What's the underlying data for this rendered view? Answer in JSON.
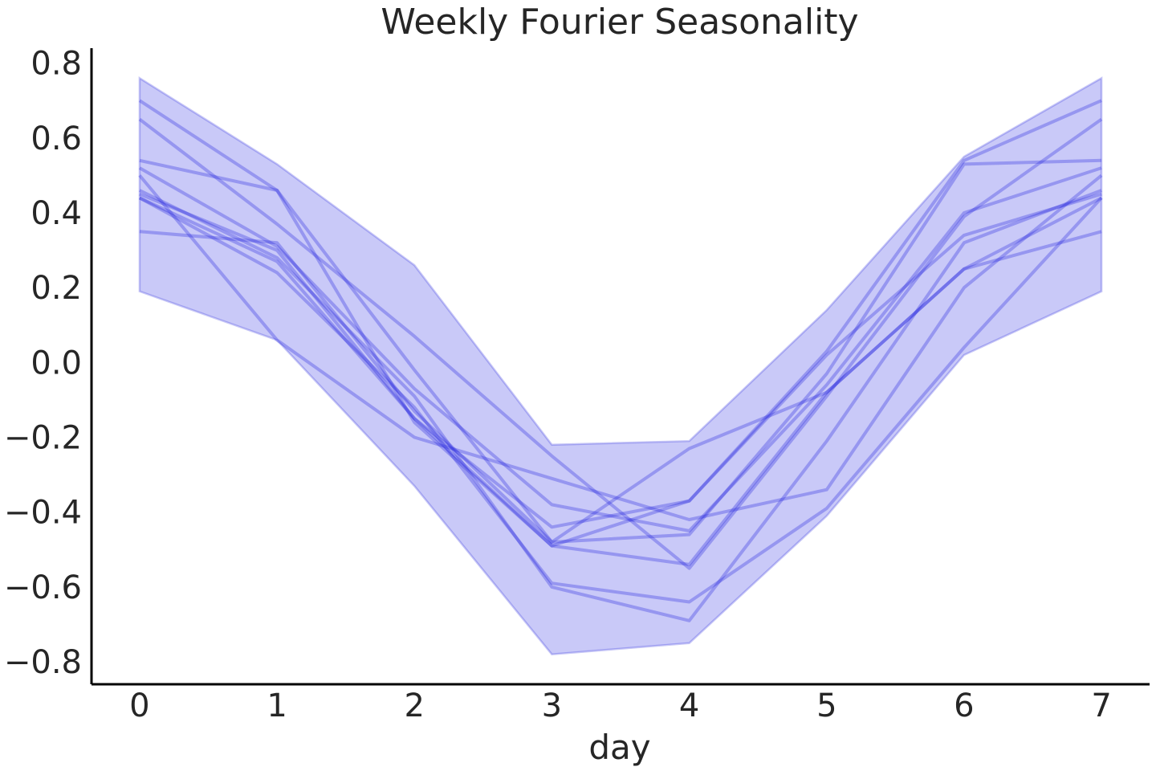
{
  "chart_data": {
    "type": "line",
    "title": "Weekly Fourier Seasonality",
    "xlabel": "day",
    "ylabel": "",
    "xlim": [
      -0.35,
      7.35
    ],
    "ylim": [
      -0.86,
      0.84
    ],
    "x_ticks": [
      0,
      1,
      2,
      3,
      4,
      5,
      6,
      7
    ],
    "x_tick_labels": [
      "0",
      "1",
      "2",
      "3",
      "4",
      "5",
      "6",
      "7"
    ],
    "y_ticks": [
      0.8,
      0.6,
      0.4,
      0.2,
      0.0,
      -0.2,
      -0.4,
      -0.6,
      -0.8
    ],
    "y_tick_labels": [
      "0.8",
      "0.6",
      "0.4",
      "0.2",
      "0.0",
      "−0.2",
      "−0.4",
      "−0.6",
      "−0.8"
    ],
    "grid": false,
    "line_color": "#2222dd",
    "band_color": "#8888f0",
    "x": [
      0,
      1,
      2,
      3,
      4,
      5,
      6,
      7
    ],
    "band": {
      "upper": [
        0.76,
        0.53,
        0.26,
        -0.22,
        -0.21,
        0.14,
        0.55,
        0.76
      ],
      "lower": [
        0.19,
        0.06,
        -0.33,
        -0.78,
        -0.75,
        -0.41,
        0.02,
        0.19
      ]
    },
    "series": [
      {
        "values": [
          0.7,
          0.46,
          -0.16,
          -0.49,
          -0.37,
          0.03,
          0.54,
          0.7
        ]
      },
      {
        "values": [
          0.65,
          0.37,
          0.07,
          -0.25,
          -0.55,
          -0.09,
          0.39,
          0.65
        ]
      },
      {
        "values": [
          0.54,
          0.46,
          -0.02,
          -0.48,
          -0.46,
          -0.03,
          0.53,
          0.54
        ]
      },
      {
        "values": [
          0.52,
          0.31,
          -0.07,
          -0.38,
          -0.45,
          -0.06,
          0.4,
          0.52
        ]
      },
      {
        "values": [
          0.5,
          0.06,
          -0.2,
          -0.31,
          -0.42,
          -0.34,
          0.2,
          0.5
        ]
      },
      {
        "values": [
          0.46,
          0.28,
          -0.09,
          -0.6,
          -0.69,
          -0.21,
          0.32,
          0.46
        ]
      },
      {
        "values": [
          0.45,
          0.3,
          -0.15,
          -0.44,
          -0.37,
          0.02,
          0.34,
          0.45
        ]
      },
      {
        "values": [
          0.44,
          0.24,
          -0.12,
          -0.59,
          -0.64,
          -0.39,
          0.04,
          0.44
        ]
      },
      {
        "values": [
          0.44,
          0.27,
          -0.15,
          -0.49,
          -0.54,
          -0.08,
          0.25,
          0.44
        ]
      },
      {
        "values": [
          0.35,
          0.32,
          -0.13,
          -0.48,
          -0.23,
          -0.08,
          0.25,
          0.35
        ]
      }
    ]
  }
}
